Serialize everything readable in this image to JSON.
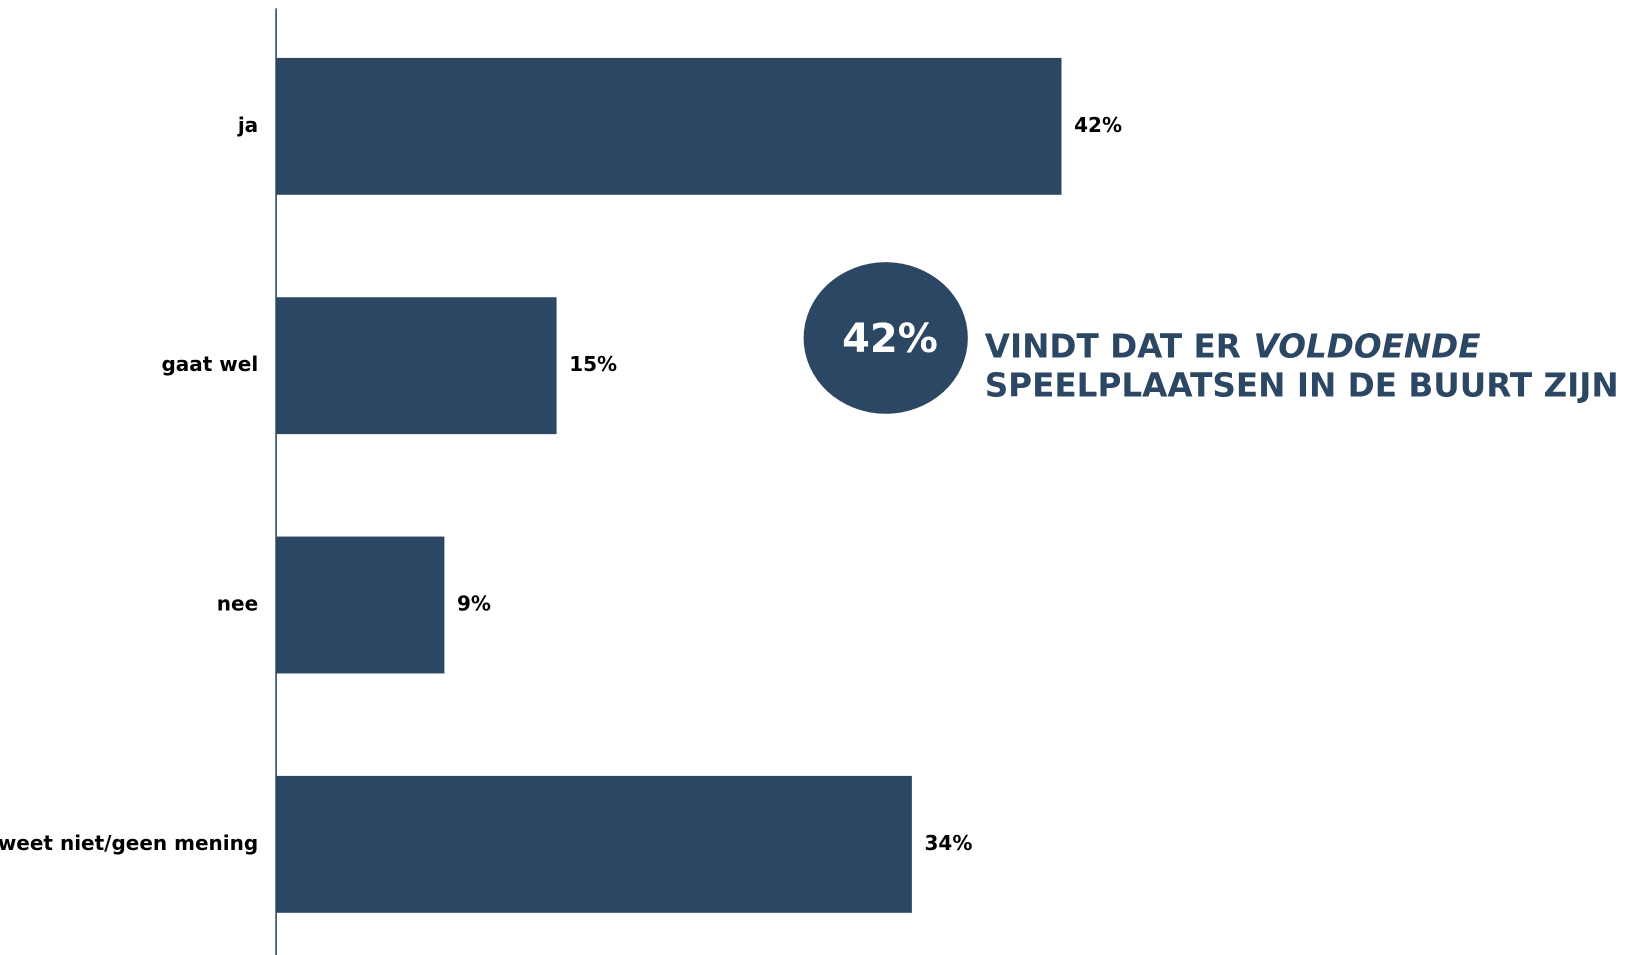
{
  "chart_data": {
    "type": "barh",
    "categories": [
      "ja",
      "gaat wel",
      "nee",
      "weet niet/geen mening"
    ],
    "values": [
      42,
      15,
      9,
      34
    ],
    "value_labels": [
      "42%",
      "15%",
      "9%",
      "34%"
    ],
    "color": "#2c4763",
    "annotation": {
      "badge": "42%",
      "line1": "VINDT DAT ER",
      "line1_emphasis": "VOLDOENDE",
      "line2": "SPEELPLAATSEN IN DE BUURT ZIJN"
    }
  }
}
